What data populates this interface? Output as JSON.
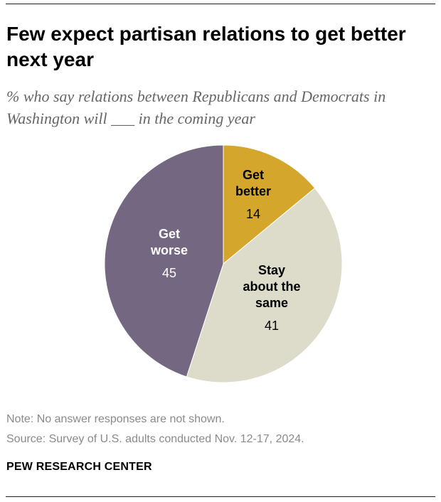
{
  "header": {
    "title": "Few expect partisan relations to get better next year",
    "subtitle": "% who say relations between Republicans and Democrats in Washington will ___ in the coming year"
  },
  "chart_data": {
    "type": "pie",
    "title": "Few expect partisan relations to get better next year",
    "subtitle": "% who say relations between Republicans and Democrats in Washington will ___ in the coming year",
    "slices": [
      {
        "label_lines": [
          "Get",
          "better"
        ],
        "value": 14,
        "color": "#d4a72c",
        "text_color": "#000000",
        "value_color": "#000000"
      },
      {
        "label_lines": [
          "Stay",
          "about the",
          "same"
        ],
        "value": 41,
        "color": "#dddbc9",
        "text_color": "#000000",
        "value_color": "#000000"
      },
      {
        "label_lines": [
          "Get",
          "worse"
        ],
        "value": 45,
        "color": "#746781",
        "text_color": "#ffffff",
        "value_color": "#ffffff"
      }
    ]
  },
  "footer": {
    "note": "Note: No answer responses are not shown.",
    "source": "Source: Survey of U.S. adults conducted Nov. 12-17, 2024.",
    "brand": "PEW RESEARCH CENTER"
  }
}
